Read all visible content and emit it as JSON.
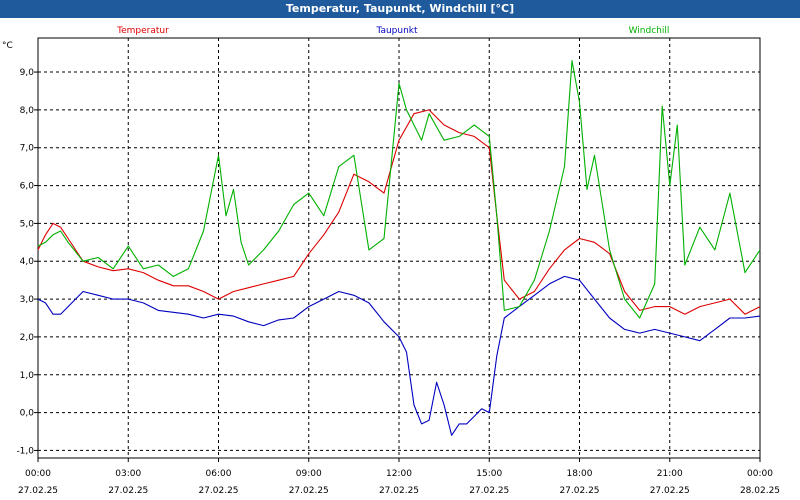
{
  "window": {
    "title": "Temperatur, Taupunkt, Windchill [°C]"
  },
  "chart_data": {
    "type": "line",
    "title": "Temperatur, Taupunkt, Windchill [°C]",
    "ylabel": "°C",
    "ylim": [
      -1.2,
      9.9
    ],
    "yticks": [
      9.0,
      8.0,
      7.0,
      6.0,
      5.0,
      4.0,
      3.0,
      2.0,
      1.0,
      0.0,
      -1.0
    ],
    "ytick_labels": [
      "9,0",
      "8,0",
      "7,0",
      "6,0",
      "5,0",
      "4,0",
      "3,0",
      "2,0",
      "1,0",
      "0,0",
      "-1,0"
    ],
    "xlim": [
      0,
      24
    ],
    "xticks": [
      0,
      3,
      6,
      9,
      12,
      15,
      18,
      21,
      24
    ],
    "xtick_time": [
      "00:00",
      "03:00",
      "06:00",
      "09:00",
      "12:00",
      "15:00",
      "18:00",
      "21:00",
      "00:00"
    ],
    "xtick_date": [
      "27.02.25",
      "27.02.25",
      "27.02.25",
      "27.02.25",
      "27.02.25",
      "27.02.25",
      "27.02.25",
      "27.02.25",
      "28.02.25"
    ],
    "grid": true,
    "legend_position": "top",
    "series": [
      {
        "name": "Temperatur",
        "color": "#dd0000",
        "x": [
          0,
          0.25,
          0.5,
          0.75,
          1,
          1.5,
          2,
          2.5,
          3,
          3.5,
          4,
          4.5,
          5,
          5.5,
          6,
          6.5,
          7,
          7.5,
          8,
          8.5,
          9,
          9.5,
          10,
          10.5,
          11,
          11.5,
          12,
          12.5,
          13,
          13.5,
          14,
          14.5,
          15,
          15.25,
          15.5,
          16,
          16.5,
          17,
          17.5,
          18,
          18.5,
          19,
          19.5,
          20,
          20.5,
          21,
          21.5,
          22,
          22.5,
          23,
          23.5,
          24
        ],
        "values": [
          4.3,
          4.7,
          5.0,
          4.9,
          4.6,
          4.0,
          3.85,
          3.75,
          3.8,
          3.7,
          3.5,
          3.35,
          3.35,
          3.2,
          3.0,
          3.2,
          3.3,
          3.4,
          3.5,
          3.6,
          4.2,
          4.7,
          5.3,
          6.3,
          6.1,
          5.8,
          7.2,
          7.9,
          8.0,
          7.6,
          7.4,
          7.3,
          7.0,
          5.2,
          3.5,
          3.0,
          3.2,
          3.8,
          4.3,
          4.6,
          4.5,
          4.2,
          3.2,
          2.7,
          2.8,
          2.8,
          2.6,
          2.8,
          2.9,
          3.0,
          2.6,
          2.8
        ]
      },
      {
        "name": "Taupunkt",
        "color": "#0000c0",
        "x": [
          0,
          0.25,
          0.5,
          0.75,
          1,
          1.5,
          2,
          2.5,
          3,
          3.5,
          4,
          4.5,
          5,
          5.5,
          6,
          6.5,
          7,
          7.5,
          8,
          8.5,
          9,
          9.5,
          10,
          10.5,
          11,
          11.5,
          12,
          12.25,
          12.5,
          12.75,
          13,
          13.25,
          13.5,
          13.75,
          14,
          14.25,
          14.5,
          14.75,
          15,
          15.25,
          15.5,
          16,
          16.5,
          17,
          17.5,
          18,
          18.5,
          19,
          19.5,
          20,
          20.5,
          21,
          21.5,
          22,
          22.5,
          23,
          23.5,
          24
        ],
        "values": [
          3.0,
          2.9,
          2.6,
          2.6,
          2.8,
          3.2,
          3.1,
          3.0,
          3.0,
          2.9,
          2.7,
          2.65,
          2.6,
          2.5,
          2.6,
          2.55,
          2.4,
          2.3,
          2.45,
          2.5,
          2.8,
          3.0,
          3.2,
          3.1,
          2.9,
          2.4,
          2.0,
          1.6,
          0.2,
          -0.3,
          -0.2,
          0.8,
          0.2,
          -0.6,
          -0.3,
          -0.3,
          -0.1,
          0.1,
          0.0,
          1.5,
          2.5,
          2.8,
          3.1,
          3.4,
          3.6,
          3.5,
          3.0,
          2.5,
          2.2,
          2.1,
          2.2,
          2.1,
          2.0,
          1.9,
          2.2,
          2.5,
          2.5,
          2.55
        ]
      },
      {
        "name": "Windchill",
        "color": "#00b000",
        "x": [
          0,
          0.25,
          0.5,
          0.75,
          1,
          1.5,
          2,
          2.5,
          3,
          3.5,
          4,
          4.5,
          5,
          5.5,
          6,
          6.25,
          6.5,
          6.75,
          7,
          7.5,
          8,
          8.5,
          9,
          9.5,
          10,
          10.5,
          11,
          11.5,
          12,
          12.25,
          12.5,
          12.75,
          13,
          13.5,
          14,
          14.5,
          15,
          15.25,
          15.5,
          16,
          16.5,
          17,
          17.5,
          17.75,
          18,
          18.25,
          18.5,
          19,
          19.5,
          20,
          20.5,
          20.75,
          21,
          21.25,
          21.5,
          22,
          22.5,
          23,
          23.5,
          24
        ],
        "values": [
          4.4,
          4.5,
          4.7,
          4.8,
          4.5,
          4.0,
          4.1,
          3.8,
          4.4,
          3.8,
          3.9,
          3.6,
          3.8,
          4.8,
          6.8,
          5.2,
          5.9,
          4.5,
          3.9,
          4.3,
          4.8,
          5.5,
          5.8,
          5.2,
          6.5,
          6.8,
          4.3,
          4.6,
          8.7,
          8.0,
          7.6,
          7.2,
          7.9,
          7.2,
          7.3,
          7.6,
          7.3,
          5.2,
          2.7,
          2.8,
          3.5,
          4.8,
          6.5,
          9.3,
          8.2,
          5.9,
          6.8,
          4.3,
          3.0,
          2.5,
          3.4,
          8.1,
          6.0,
          7.6,
          3.9,
          4.9,
          4.3,
          5.8,
          3.7,
          4.3
        ]
      }
    ]
  }
}
